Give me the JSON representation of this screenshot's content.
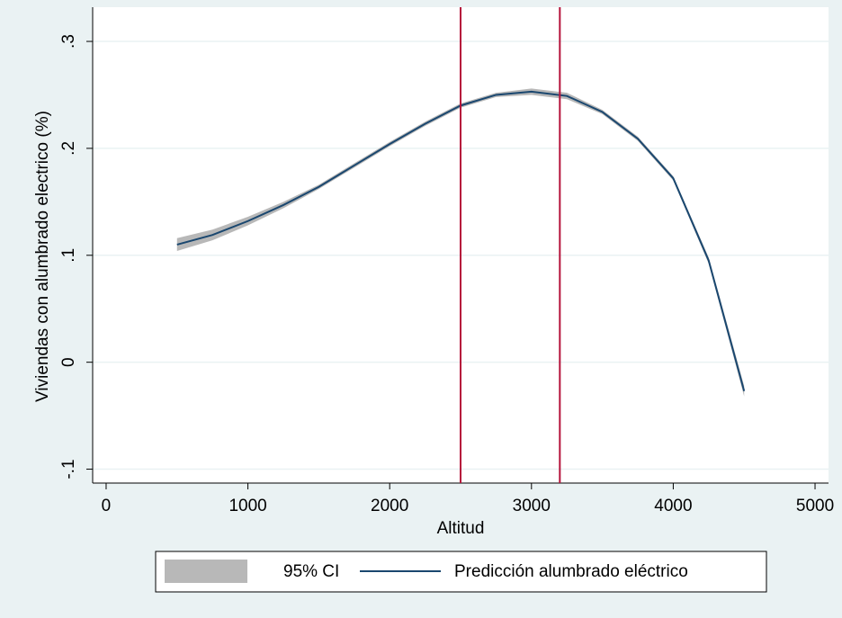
{
  "chart_data": {
    "type": "line",
    "x_label": "Altitud",
    "y_label": "Viviendas con alumbrado electrico (%)",
    "x": [
      500,
      750,
      1000,
      1250,
      1500,
      1750,
      2000,
      2250,
      2500,
      2750,
      3000,
      3250,
      3500,
      3750,
      4000,
      4250,
      4500
    ],
    "series": [
      {
        "name": "95% CI",
        "color": "#b8b8b8",
        "upper": [
          0.116,
          0.124,
          0.136,
          0.15,
          0.166,
          0.186,
          0.206,
          0.225,
          0.242,
          0.252,
          0.256,
          0.252,
          0.236,
          0.211,
          0.174,
          0.098,
          -0.022
        ],
        "lower": [
          0.104,
          0.114,
          0.128,
          0.144,
          0.162,
          0.182,
          0.202,
          0.221,
          0.238,
          0.248,
          0.25,
          0.246,
          0.232,
          0.207,
          0.17,
          0.092,
          -0.032
        ]
      },
      {
        "name": "Predicción alumbrado eléctrico",
        "color": "#1a476f",
        "values": [
          0.11,
          0.119,
          0.132,
          0.147,
          0.164,
          0.184,
          0.204,
          0.223,
          0.24,
          0.25,
          0.253,
          0.249,
          0.234,
          0.209,
          0.172,
          0.095,
          -0.027
        ]
      }
    ],
    "vlines": [
      2500,
      3200
    ],
    "vline_color": "#b5123b",
    "xlim": [
      -95,
      5095
    ],
    "ylim": [
      -0.113,
      0.332
    ],
    "xticks": [
      0,
      1000,
      2000,
      3000,
      4000,
      5000
    ],
    "yticks": [
      {
        "value": -0.1,
        "label": "-.1"
      },
      0,
      {
        "value": 0.1,
        "label": ".1"
      },
      {
        "value": 0.2,
        "label": ".2"
      },
      {
        "value": 0.3,
        "label": ".3"
      }
    ],
    "grid": true
  }
}
